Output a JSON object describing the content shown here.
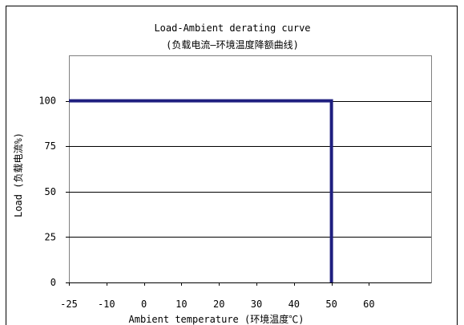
{
  "chart_data": {
    "type": "line",
    "title": "Load-Ambient derating curve",
    "subtitle": "(负载电流—环境温度降额曲线)",
    "xlabel": "Ambient temperature  (环境温度℃)",
    "ylabel": "Load (负载电流%)",
    "x_ticks": [
      "-25",
      "-10",
      "0",
      "10",
      "20",
      "30",
      "40",
      "50",
      "60"
    ],
    "y_ticks": [
      0,
      25,
      50,
      75,
      100
    ],
    "ylim": [
      0,
      125
    ],
    "grid": true,
    "legend": "none",
    "series": [
      {
        "color": "#1f1f7f",
        "points": [
          {
            "x": "-25",
            "y": 100
          },
          {
            "x": "50",
            "y": 100
          },
          {
            "x": "50",
            "y": 0
          }
        ]
      }
    ]
  }
}
